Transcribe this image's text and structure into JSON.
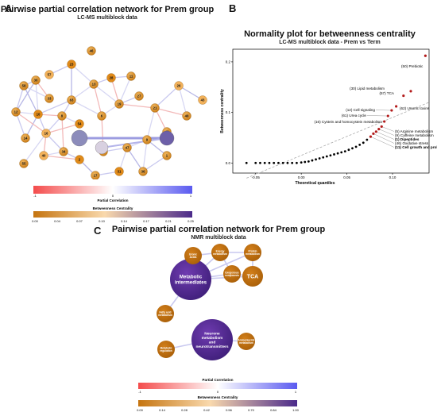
{
  "panelA": {
    "letter": "A",
    "title": "Pairwise partial correlation network for Prem group",
    "subtitle": "LC-MS multiblock data",
    "node_labels": [
      "46",
      "13",
      "23",
      "57",
      "30",
      "58",
      "33",
      "10",
      "12",
      "14",
      "16",
      "8",
      "54",
      "6",
      "19",
      "27",
      "21",
      "26",
      "48",
      "9",
      "47",
      "44",
      "2",
      "34",
      "40",
      "55",
      "17",
      "31",
      "36",
      "1",
      "49",
      "43",
      "28",
      "11",
      "63"
    ],
    "legend_partial": {
      "title": "Partial Correlation",
      "ticks": [
        "-1",
        "0",
        "1"
      ]
    },
    "legend_betweenness": {
      "title": "Betweenness Centrality",
      "ticks": [
        "0.00",
        "0.04",
        "0.07",
        "0.10",
        "0.14",
        "0.17",
        "0.21",
        "0.25"
      ]
    }
  },
  "panelB": {
    "letter": "B",
    "title": "Normality plot for betweenness centrality",
    "subtitle": "LC-MS multiblock data - Prem vs Term",
    "chart_data": {
      "type": "scatter",
      "title": "Normality plot for betweenness centrality",
      "subtitle": "LC-MS multiblock data - Prem vs Term",
      "xlabel": "Theoretical quantiles",
      "ylabel": "Betweenness centrality",
      "xlim": [
        -0.075,
        0.14
      ],
      "ylim": [
        -0.02,
        0.225
      ],
      "xticks": [
        "-0.05",
        "0.00",
        "0.05",
        "0.10"
      ],
      "yticks": [
        "0.0",
        "0.1",
        "0.2"
      ],
      "points_black": [
        [
          -0.06,
          0.0
        ],
        [
          -0.05,
          0.0
        ],
        [
          -0.045,
          0.0
        ],
        [
          -0.04,
          0.0
        ],
        [
          -0.035,
          0.0
        ],
        [
          -0.03,
          0.0
        ],
        [
          -0.025,
          0.0
        ],
        [
          -0.02,
          0.0
        ],
        [
          -0.015,
          0.0
        ],
        [
          -0.01,
          0.0
        ],
        [
          -0.005,
          0.0
        ],
        [
          0.0,
          0.001
        ],
        [
          0.004,
          0.002
        ],
        [
          0.008,
          0.003
        ],
        [
          0.012,
          0.005
        ],
        [
          0.016,
          0.007
        ],
        [
          0.02,
          0.009
        ],
        [
          0.024,
          0.011
        ],
        [
          0.028,
          0.013
        ],
        [
          0.032,
          0.015
        ],
        [
          0.036,
          0.017
        ],
        [
          0.04,
          0.019
        ],
        [
          0.044,
          0.021
        ],
        [
          0.048,
          0.023
        ],
        [
          0.052,
          0.026
        ],
        [
          0.056,
          0.029
        ],
        [
          0.06,
          0.032
        ],
        [
          0.064,
          0.036
        ],
        [
          0.068,
          0.04
        ],
        [
          0.072,
          0.046
        ]
      ],
      "points_highlight": [
        {
          "x": 0.076,
          "y": 0.052,
          "label": "(11) Cell growth and proliferation",
          "bold": true
        },
        {
          "x": 0.079,
          "y": 0.058,
          "label": "(46) Oxidative stress",
          "bold": false
        },
        {
          "x": 0.082,
          "y": 0.062,
          "label": "(1) Dipeptides",
          "bold": true
        },
        {
          "x": 0.085,
          "y": 0.067,
          "label": "(9) Caffeine metabolism",
          "bold": false
        },
        {
          "x": 0.088,
          "y": 0.072,
          "label": "(5) Arginine metabolism",
          "bold": false
        },
        {
          "x": 0.091,
          "y": 0.082,
          "label": "(16) Cystein and homocystein metabolism",
          "bold": false
        },
        {
          "x": 0.095,
          "y": 0.093,
          "label": "(61) Urea cycle",
          "bold": false
        },
        {
          "x": 0.099,
          "y": 0.104,
          "label": "(12) Cell signaling",
          "bold": false
        },
        {
          "x": 0.104,
          "y": 0.112,
          "label": "(62) Uremic toxins",
          "bold": false
        },
        {
          "x": 0.112,
          "y": 0.133,
          "label": "(57) TCA",
          "bold": false
        },
        {
          "x": 0.12,
          "y": 0.142,
          "label": "(30) Lipid metabolism",
          "bold": false
        },
        {
          "x": 0.136,
          "y": 0.212,
          "label": "(50) Prebiotic",
          "bold": false
        }
      ],
      "reference_line": [
        [
          -0.06,
          -0.03
        ],
        [
          0.14,
          0.12
        ]
      ],
      "colors": {
        "black": "#000000",
        "highlight": "#b31b1b",
        "refline": "#aaaaaa"
      }
    }
  },
  "panelC": {
    "letter": "C",
    "title": "Pairwise partial correlation network for Prem group",
    "subtitle": "NMR multiblock data",
    "nodes": [
      {
        "label": "Metabolic intermediates",
        "big": true
      },
      {
        "label": "Neuronal metabolism and neurotransmitters",
        "big": true
      },
      {
        "label": "Uronic Acids",
        "big": false
      },
      {
        "label": "Energy metabolism",
        "big": false
      },
      {
        "label": "Protein metabolism",
        "big": false
      },
      {
        "label": "TCA",
        "big": false
      },
      {
        "label": "Exogenous compounds",
        "big": false
      },
      {
        "label": "Fatty acid metabolism",
        "big": false
      },
      {
        "label": "Metabolic regulation",
        "big": false
      },
      {
        "label": "Ammoniacids metabolism",
        "big": false
      }
    ],
    "legend_partial": {
      "title": "Partial Correlation",
      "ticks": [
        "-1",
        "0",
        "1"
      ]
    },
    "legend_betweenness": {
      "title": "Betweenness Centrality",
      "ticks": [
        "0.00",
        "0.14",
        "0.28",
        "0.42",
        "0.56",
        "0.70",
        "0.84",
        "1.00"
      ]
    }
  }
}
